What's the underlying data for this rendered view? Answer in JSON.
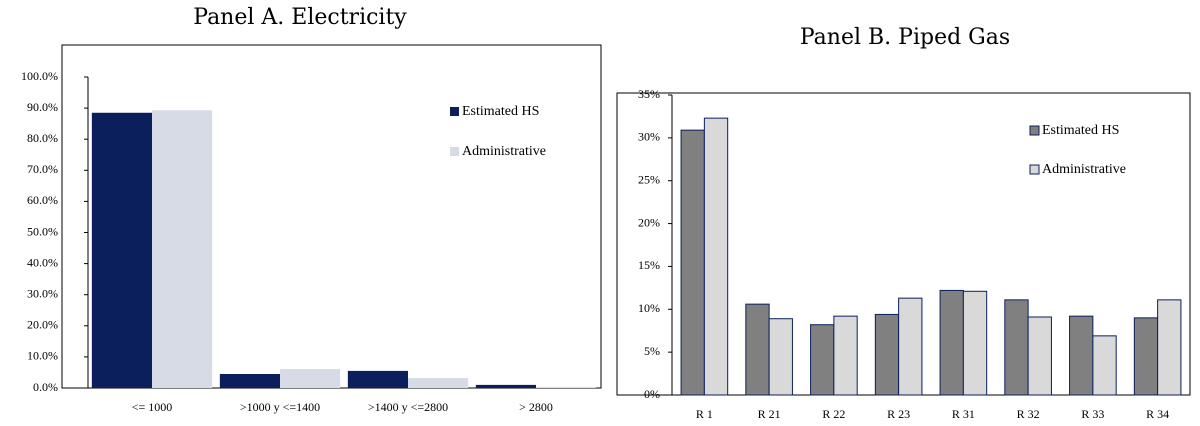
{
  "chart_data": [
    {
      "type": "bar",
      "title": "Panel A. Electricity",
      "categories": [
        "<= 1000",
        ">1000 y <=1400",
        ">1400 y <=2800",
        "> 2800"
      ],
      "series": [
        {
          "name": "Estimated HS",
          "color": "#0b1f5c",
          "values": [
            88.5,
            4.5,
            5.5,
            1.0
          ]
        },
        {
          "name": "Administrative",
          "color": "#d6dbe6",
          "values": [
            89.3,
            6.1,
            3.2,
            0.3
          ]
        }
      ],
      "ylim": [
        0,
        100
      ],
      "yticks": [
        {
          "value": 0,
          "label": "0.0%"
        },
        {
          "value": 10,
          "label": "10.0%"
        },
        {
          "value": 20,
          "label": "20.0%"
        },
        {
          "value": 30,
          "label": "30.0%"
        },
        {
          "value": 40,
          "label": "40.0%"
        },
        {
          "value": 50,
          "label": "50.0%"
        },
        {
          "value": 60,
          "label": "60.0%"
        },
        {
          "value": 70,
          "label": "70.0%"
        },
        {
          "value": 80,
          "label": "80.0%"
        },
        {
          "value": 90,
          "label": "90.0%"
        },
        {
          "value": 100,
          "label": "100.0%"
        }
      ],
      "grid": false,
      "legend": "upper right"
    },
    {
      "type": "bar",
      "title": "Panel B. Piped Gas",
      "categories": [
        "R 1",
        "R 21",
        "R 22",
        "R 23",
        "R 31",
        "R 32",
        "R 33",
        "R 34"
      ],
      "series": [
        {
          "name": "Estimated HS",
          "color": "#808080",
          "values": [
            30.9,
            10.6,
            8.2,
            9.4,
            12.2,
            11.1,
            9.2,
            9.0
          ]
        },
        {
          "name": "Administrative",
          "color": "#d9d9d9",
          "values": [
            32.3,
            8.9,
            9.2,
            11.3,
            12.1,
            9.1,
            6.9,
            11.1
          ]
        }
      ],
      "ylim": [
        0,
        35
      ],
      "yticks": [
        {
          "value": 0,
          "label": "0%"
        },
        {
          "value": 5,
          "label": "5%"
        },
        {
          "value": 10,
          "label": "10%"
        },
        {
          "value": 15,
          "label": "15%"
        },
        {
          "value": 20,
          "label": "20%"
        },
        {
          "value": 25,
          "label": "25%"
        },
        {
          "value": 30,
          "label": "30%"
        },
        {
          "value": 35,
          "label": "35%"
        }
      ],
      "grid": false,
      "legend": "upper right"
    }
  ]
}
